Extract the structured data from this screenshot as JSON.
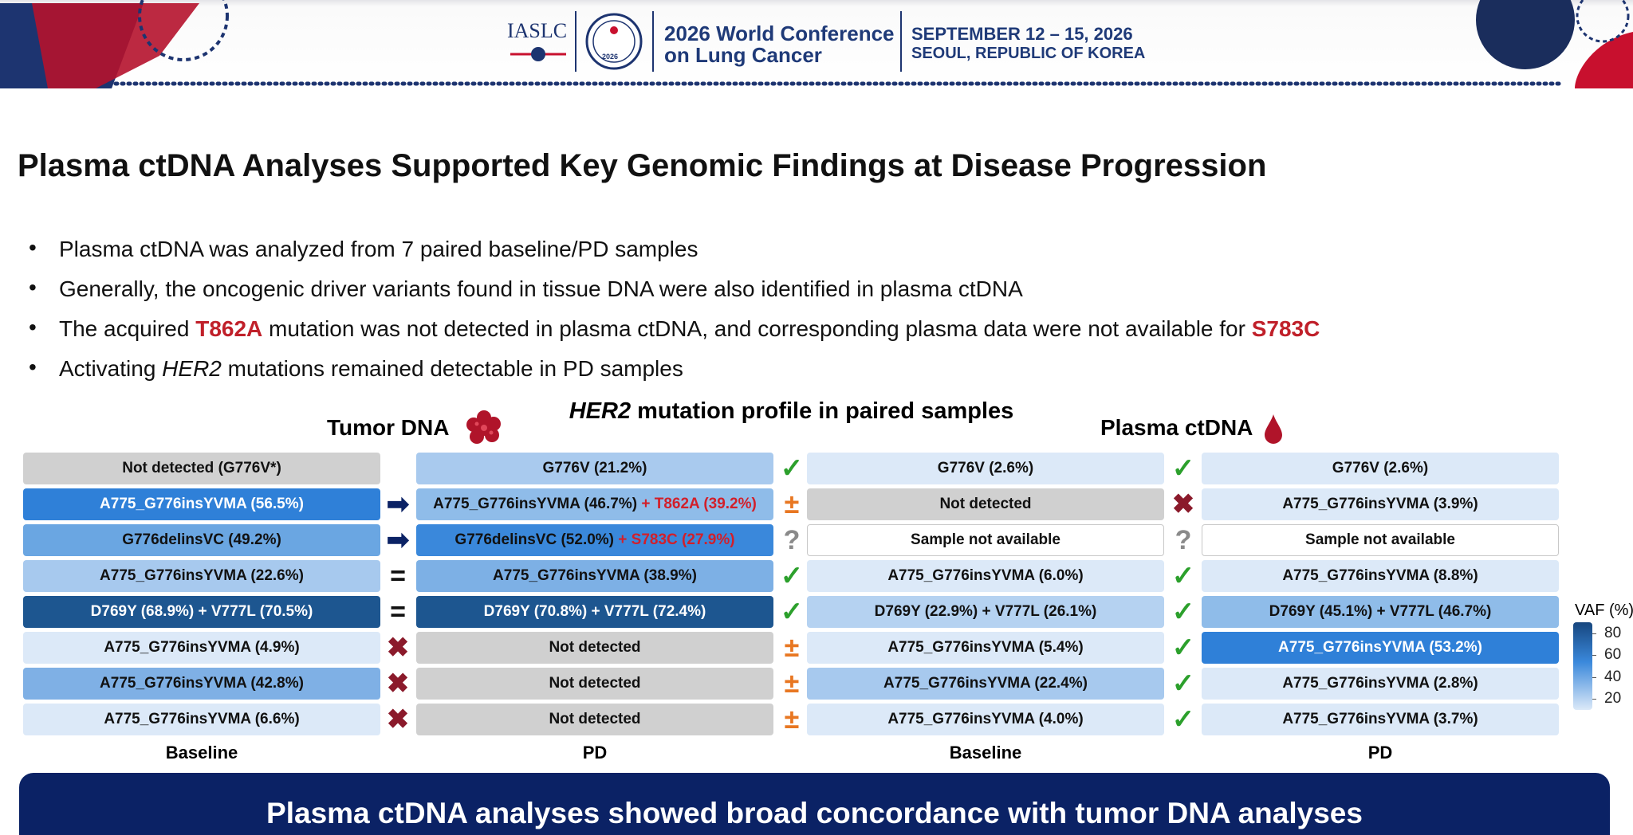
{
  "header": {
    "org": "IASLC",
    "seal_year": "2026",
    "conference_line1": "2026 World Conference",
    "conference_line2": "on Lung Cancer",
    "dates": "SEPTEMBER 12 – 15, 2026",
    "location": "SEOUL, REPUBLIC OF KOREA"
  },
  "title": "Plasma ctDNA Analyses Supported Key Genomic Findings at Disease Progression",
  "bullets": [
    [
      {
        "text": "Plasma ctDNA was analyzed from 7 paired baseline/PD samples"
      }
    ],
    [
      {
        "text": "Generally, the oncogenic driver variants found in tissue DNA were also identified in plasma ctDNA"
      }
    ],
    [
      {
        "text": "The acquired "
      },
      {
        "text": "T862A",
        "emphasis": "red"
      },
      {
        "text": " mutation was not detected in plasma ctDNA, and corresponding plasma data were not available for "
      },
      {
        "text": "S783C",
        "emphasis": "red"
      }
    ],
    [
      {
        "text": "Activating "
      },
      {
        "text": "HER2",
        "emphasis": "italic"
      },
      {
        "text": " mutations remained detectable in PD samples"
      }
    ]
  ],
  "figure": {
    "title": [
      {
        "text": "HER2",
        "emphasis": "italic"
      },
      {
        "text": " mutation profile in paired samples"
      }
    ],
    "tumor_label": "Tumor DNA",
    "plasma_label": "Plasma ctDNA",
    "column_labels": [
      "Baseline",
      "PD",
      "Baseline",
      "PD"
    ],
    "rows": [
      {
        "cells": [
          {
            "text": "Not detected (G776V*)"
          },
          {
            "text": "G776V (21.2%)"
          },
          {
            "text": "G776V (2.6%)"
          },
          {
            "text": "G776V (2.6%)"
          }
        ],
        "marks": [
          "",
          "✓",
          "✓"
        ]
      },
      {
        "cells": [
          {
            "text": "A775_G776insYVMA (56.5%)"
          },
          {
            "text": "A775_G776insYVMA (46.7%)",
            "added": "+ T862A (39.2%)"
          },
          {
            "text": "Not detected"
          },
          {
            "text": "A775_G776insYVMA (3.9%)"
          }
        ],
        "marks": [
          "➡",
          "±",
          "✖"
        ]
      },
      {
        "cells": [
          {
            "text": "G776delinsVC (49.2%)"
          },
          {
            "text": "G776delinsVC (52.0%)",
            "added": "+ S783C (27.9%)"
          },
          {
            "text": "Sample not available"
          },
          {
            "text": "Sample not available"
          }
        ],
        "marks": [
          "➡",
          "?",
          "?"
        ]
      },
      {
        "cells": [
          {
            "text": "A775_G776insYVMA (22.6%)"
          },
          {
            "text": "A775_G776insYVMA (38.9%)"
          },
          {
            "text": "A775_G776insYVMA (6.0%)"
          },
          {
            "text": "A775_G776insYVMA (8.8%)"
          }
        ],
        "marks": [
          "=",
          "✓",
          "✓"
        ]
      },
      {
        "cells": [
          {
            "text": "D769Y (68.9%) + V777L (70.5%)"
          },
          {
            "text": "D769Y (70.8%) + V777L (72.4%)"
          },
          {
            "text": "D769Y (22.9%) + V777L (26.1%)"
          },
          {
            "text": "D769Y (45.1%) + V777L (46.7%)"
          }
        ],
        "marks": [
          "=",
          "✓",
          "✓"
        ]
      },
      {
        "cells": [
          {
            "text": "A775_G776insYVMA (4.9%)"
          },
          {
            "text": "Not detected"
          },
          {
            "text": "A775_G776insYVMA (5.4%)"
          },
          {
            "text": "A775_G776insYVMA (53.2%)"
          }
        ],
        "marks": [
          "✖",
          "±",
          "✓"
        ]
      },
      {
        "cells": [
          {
            "text": "A775_G776insYVMA (42.8%)"
          },
          {
            "text": "Not detected"
          },
          {
            "text": "A775_G776insYVMA (22.4%)"
          },
          {
            "text": "A775_G776insYVMA (2.8%)"
          }
        ],
        "marks": [
          "✖",
          "±",
          "✓"
        ]
      },
      {
        "cells": [
          {
            "text": "A775_G776insYVMA (6.6%)"
          },
          {
            "text": "Not detected"
          },
          {
            "text": "A775_G776insYVMA (4.0%)"
          },
          {
            "text": "A775_G776insYVMA (3.7%)"
          }
        ],
        "marks": [
          "✖",
          "±",
          "✓"
        ]
      }
    ],
    "legend": {
      "title": "VAF (%)",
      "lim": [
        10,
        90
      ],
      "ticks": [
        80,
        60,
        40,
        20
      ]
    }
  },
  "conclusion": "Plasma ctDNA analyses showed broad concordance with tumor DNA analyses"
}
